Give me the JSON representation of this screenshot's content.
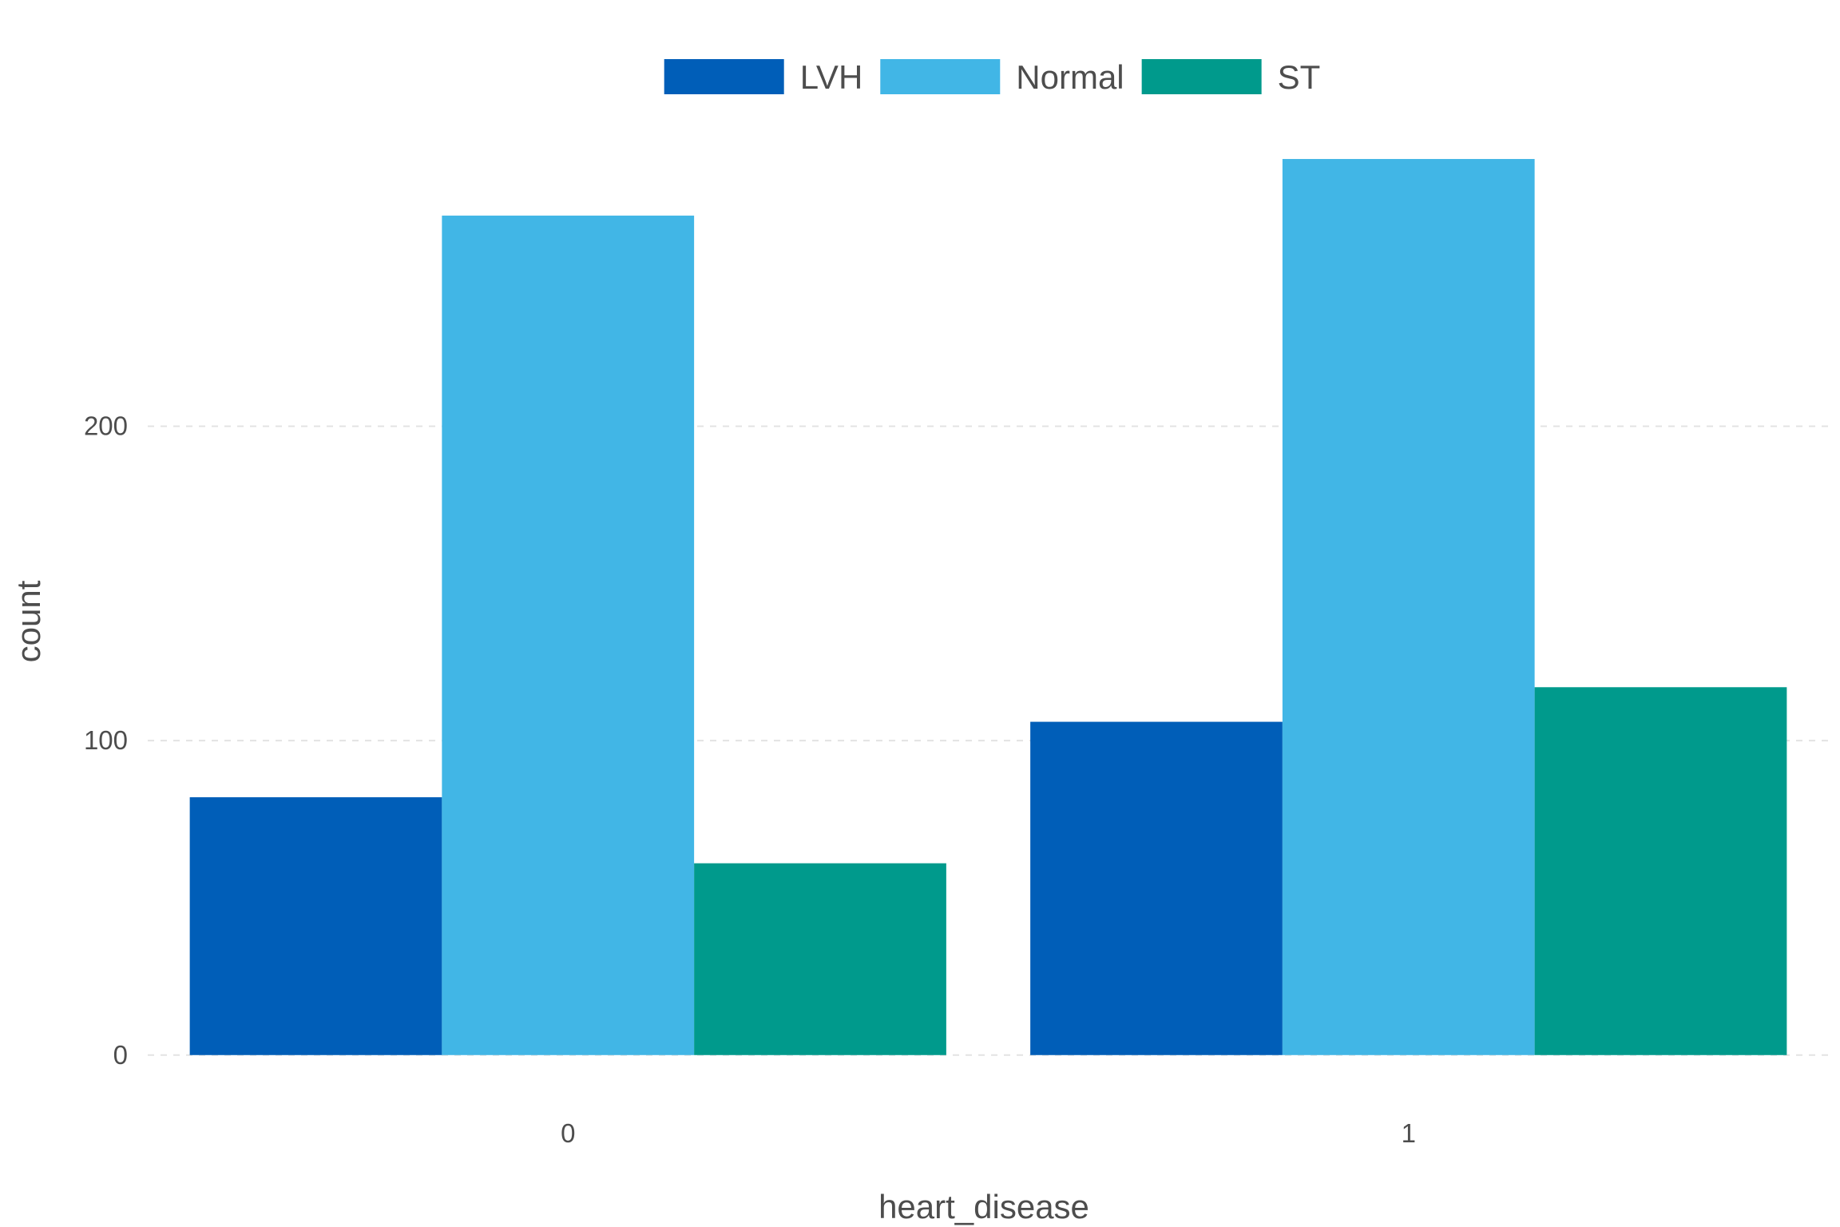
{
  "chart_data": {
    "type": "bar",
    "barmode": "group",
    "categories": [
      "0",
      "1"
    ],
    "series": [
      {
        "name": "LVH",
        "color": "#005EB8",
        "values": [
          82,
          106
        ]
      },
      {
        "name": "Normal",
        "color": "#41B6E6",
        "values": [
          267,
          285
        ]
      },
      {
        "name": "ST",
        "color": "#009A8C",
        "values": [
          61,
          117
        ]
      }
    ],
    "xlabel": "heart_disease",
    "ylabel": "count",
    "ylim": [
      -12,
      300
    ],
    "yticks": [
      0,
      100,
      200
    ],
    "grid": "horizontal dashed",
    "legend_position": "top"
  }
}
